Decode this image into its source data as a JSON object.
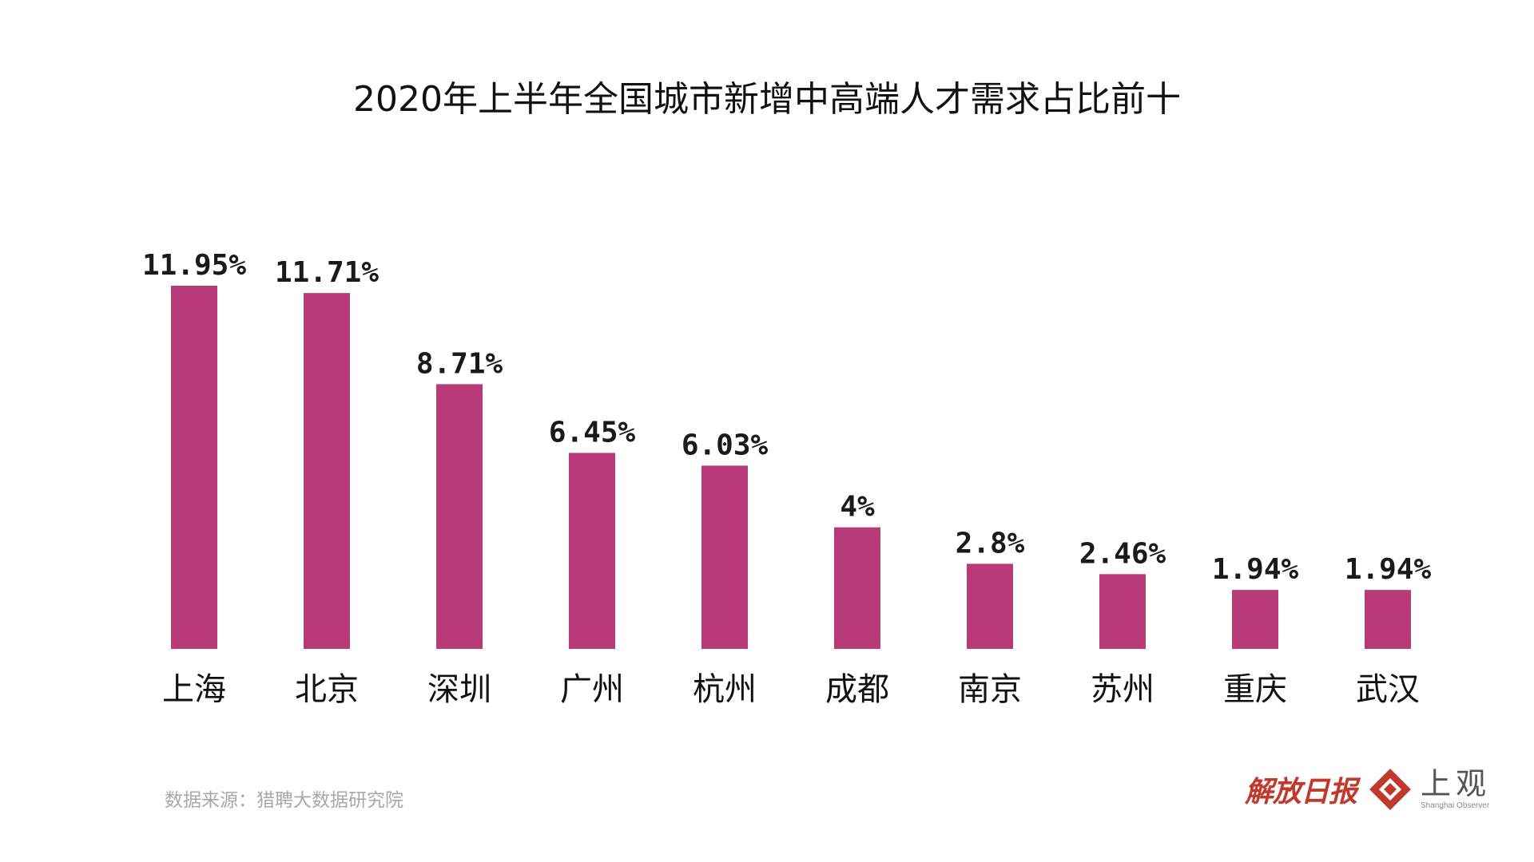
{
  "chart_data": {
    "type": "bar",
    "title": "2020年上半年全国城市新增中高端人才需求占比前十",
    "categories": [
      "上海",
      "北京",
      "深圳",
      "广州",
      "杭州",
      "成都",
      "南京",
      "苏州",
      "重庆",
      "武汉"
    ],
    "values": [
      11.95,
      11.71,
      8.71,
      6.45,
      6.03,
      4,
      2.8,
      2.46,
      1.94,
      1.94
    ],
    "data_labels": [
      "11.95%",
      "11.71%",
      "8.71%",
      "6.45%",
      "6.03%",
      "4%",
      "2.8%",
      "2.46%",
      "1.94%",
      "1.94%"
    ],
    "xlabel": "",
    "ylabel": "",
    "ylim": [
      0,
      12
    ],
    "grid": false,
    "bar_color": "#b83a78"
  },
  "footer": {
    "source": "数据来源：猎聘大数据研究院",
    "brand_calligraphy": "解放日报",
    "brand_name": "上观",
    "brand_english": "Shanghai Observer"
  },
  "colors": {
    "bar": "#b83a78",
    "brand_red": "#c0392b"
  }
}
